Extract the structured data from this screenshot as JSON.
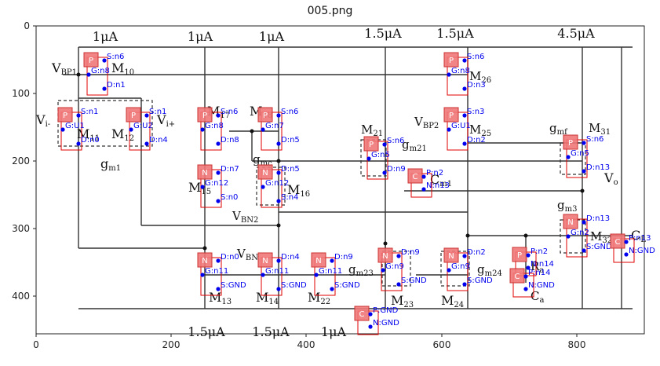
{
  "title": "005.png",
  "axes": {
    "x_ticks": [
      "0",
      "200",
      "400",
      "600",
      "800"
    ],
    "y_ticks": [
      "0",
      "100",
      "200",
      "300",
      "400"
    ]
  },
  "currents": {
    "top": [
      "1μA",
      "1μA",
      "1μA",
      "1.5μA",
      "1.5μA",
      "4.5μA"
    ],
    "bottom": [
      "1.5μA",
      "1.5μA",
      "1μA"
    ]
  },
  "labels": {
    "vbp1": "V",
    "vbp1_sub": "BP1",
    "vbp2": "V",
    "vbp2_sub": "BP2",
    "vbn": "V",
    "vbn_sub": "BN",
    "vbn2": "V",
    "vbn2_sub": "BN2",
    "vi_minus": "V",
    "vi_minus_sub": "i-",
    "vi_plus": "V",
    "vi_plus_sub": "i+",
    "vo": "V",
    "vo_sub": "o",
    "gm1": "g",
    "gm1_sub": "m1",
    "gmc": "g",
    "gmc_sub": "mc",
    "gm21": "g",
    "gm21_sub": "m21",
    "gm23": "g",
    "gm23_sub": "m23",
    "gm24": "g",
    "gm24_sub": "m24",
    "gmf": "g",
    "gmf_sub": "mf",
    "gm3": "g",
    "gm3_sub": "m3",
    "cm1": "C",
    "cm1_sub": "m1",
    "ca": "C",
    "ca_sub": "a",
    "cl": "C",
    "cl_sub": "L",
    "m10": "M",
    "m10_sub": "10",
    "m11": "M",
    "m11_sub": "11",
    "m12": "M",
    "m12_sub": "12",
    "m13": "M",
    "m13_sub": "13",
    "m14": "M",
    "m14_sub": "14",
    "m15": "M",
    "m15_sub": "15",
    "m16": "M",
    "m16_sub": "16",
    "m17": "M",
    "m17_sub": "17",
    "m18": "M",
    "m18_sub": "18",
    "m21": "M",
    "m21_sub": "21",
    "m22": "M",
    "m22_sub": "22",
    "m23": "M",
    "m23_sub": "23",
    "m24": "M",
    "m24_sub": "24",
    "m25": "M",
    "m25_sub": "25",
    "m26": "M",
    "m26_sub": "26",
    "m31": "M",
    "m31_sub": "31",
    "m32": "M",
    "m32_sub": "32",
    "ra": "R",
    "ra_sub": "a"
  },
  "devices": [
    {
      "type": "P",
      "pins": [
        "S:n6",
        "G:n8",
        "D:n1"
      ]
    },
    {
      "type": "P",
      "pins": [
        "S:n1",
        "G:U1",
        "D:n0"
      ]
    },
    {
      "type": "P",
      "pins": [
        "S:n1",
        "G:U2",
        "D:n4"
      ]
    },
    {
      "type": "P",
      "pins": [
        "S:n6",
        "G:n8",
        "D:n3"
      ]
    },
    {
      "type": "P",
      "pins": [
        "S:n3",
        "G:U1",
        "D:n2"
      ]
    },
    {
      "type": "P",
      "pins": [
        "S:n6",
        "G:n8",
        "D:n8"
      ]
    },
    {
      "type": "P",
      "pins": [
        "S:n6",
        "G:n7",
        "D:n5"
      ]
    },
    {
      "type": "P",
      "pins": [
        "S:n6",
        "G:n5",
        "D:n9"
      ]
    },
    {
      "type": "P",
      "pins": [
        "S:n6",
        "G:n5",
        "D:n13"
      ]
    },
    {
      "type": "N",
      "pins": [
        "D:n7",
        "G:n12",
        "S:n0"
      ]
    },
    {
      "type": "N",
      "pins": [
        "D:n5",
        "G:n12",
        "S:n4"
      ]
    },
    {
      "type": "C",
      "pins": [
        "P:n2",
        "N:n13"
      ]
    },
    {
      "type": "N",
      "pins": [
        "D:n13",
        "G:n2",
        "S:GND"
      ]
    },
    {
      "type": "N",
      "pins": [
        "D:n0",
        "G:n11",
        "S:GND"
      ]
    },
    {
      "type": "N",
      "pins": [
        "D:n4",
        "G:n11",
        "S:GND"
      ]
    },
    {
      "type": "N",
      "pins": [
        "D:n9",
        "G:n11",
        "S:GND"
      ]
    },
    {
      "type": "N",
      "pins": [
        "D:n9",
        "G:n9",
        "S:GND"
      ]
    },
    {
      "type": "N",
      "pins": [
        "D:n2",
        "G:n9",
        "S:GND"
      ]
    },
    {
      "type": "P",
      "pins": [
        "P:n2",
        "N:n14"
      ]
    },
    {
      "type": "C",
      "pins": [
        "P:n14",
        "N:GND"
      ]
    },
    {
      "type": "C",
      "pins": [
        "P:n13",
        "N:GND"
      ]
    },
    {
      "type": "C",
      "pins": [
        "P:GND",
        "N:GND"
      ]
    }
  ]
}
